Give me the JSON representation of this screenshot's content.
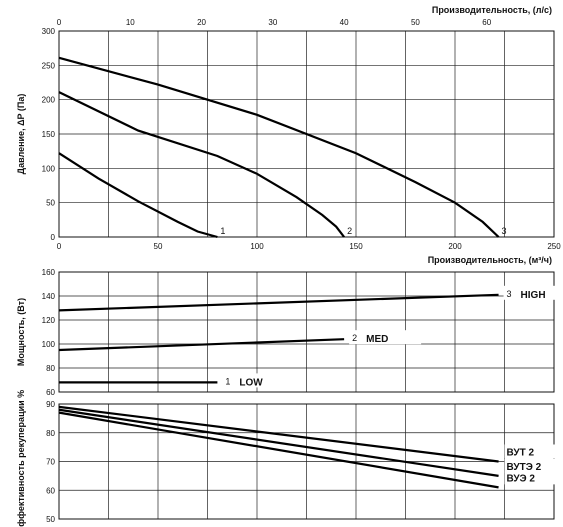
{
  "chart_data": [
    {
      "type": "line",
      "title": "",
      "xlabel": "Производительность, (м³/ч)",
      "x2label": "Производительность, (л/с)",
      "ylabel": "Давление, ΔP (Па)",
      "xlim": [
        0,
        250
      ],
      "x2lim": [
        0,
        69.44
      ],
      "ylim": [
        0,
        300
      ],
      "xticks": [
        "0",
        "50",
        "100",
        "150",
        "200",
        "250"
      ],
      "x2ticks": [
        "0",
        "10",
        "20",
        "30",
        "40",
        "50",
        "60"
      ],
      "yticks": [
        "0",
        "50",
        "100",
        "150",
        "200",
        "250",
        "300"
      ],
      "grid": true,
      "series": [
        {
          "name": "1",
          "x": [
            0,
            20,
            40,
            60,
            70,
            80
          ],
          "y": [
            122,
            85,
            52,
            22,
            8,
            0
          ]
        },
        {
          "name": "2",
          "x": [
            0,
            40,
            80,
            100,
            120,
            133,
            140,
            144
          ],
          "y": [
            211,
            155,
            118,
            92,
            58,
            32,
            15,
            0
          ]
        },
        {
          "name": "3",
          "x": [
            0,
            50,
            100,
            150,
            180,
            200,
            214,
            222
          ],
          "y": [
            261,
            222,
            178,
            122,
            80,
            50,
            22,
            0
          ]
        }
      ]
    },
    {
      "type": "line",
      "title": "",
      "xlabel": "",
      "ylabel": "Мощность, (Вт)",
      "xlim": [
        0,
        250
      ],
      "ylim": [
        60,
        160
      ],
      "yticks": [
        "60",
        "80",
        "100",
        "120",
        "140",
        "160"
      ],
      "grid": true,
      "series": [
        {
          "name": "1",
          "mode": "LOW",
          "x": [
            0,
            80
          ],
          "y": [
            68,
            68
          ]
        },
        {
          "name": "2",
          "mode": "MED",
          "x": [
            0,
            144
          ],
          "y": [
            95,
            104
          ]
        },
        {
          "name": "3",
          "mode": "HIGH",
          "x": [
            0,
            222
          ],
          "y": [
            128,
            141
          ]
        }
      ]
    },
    {
      "type": "line",
      "title": "",
      "xlabel": "",
      "ylabel": "Эффективность рекуперации %",
      "xlim": [
        0,
        250
      ],
      "ylim": [
        50,
        90
      ],
      "yticks": [
        "50",
        "60",
        "70",
        "80",
        "90"
      ],
      "grid": true,
      "series": [
        {
          "name": "ВУТ 2",
          "x": [
            0,
            222
          ],
          "y": [
            89,
            70
          ]
        },
        {
          "name": "ВУТЭ 2",
          "x": [
            0,
            222
          ],
          "y": [
            88,
            65
          ]
        },
        {
          "name": "ВУЭ 2",
          "x": [
            0,
            222
          ],
          "y": [
            87,
            61
          ]
        }
      ]
    }
  ]
}
